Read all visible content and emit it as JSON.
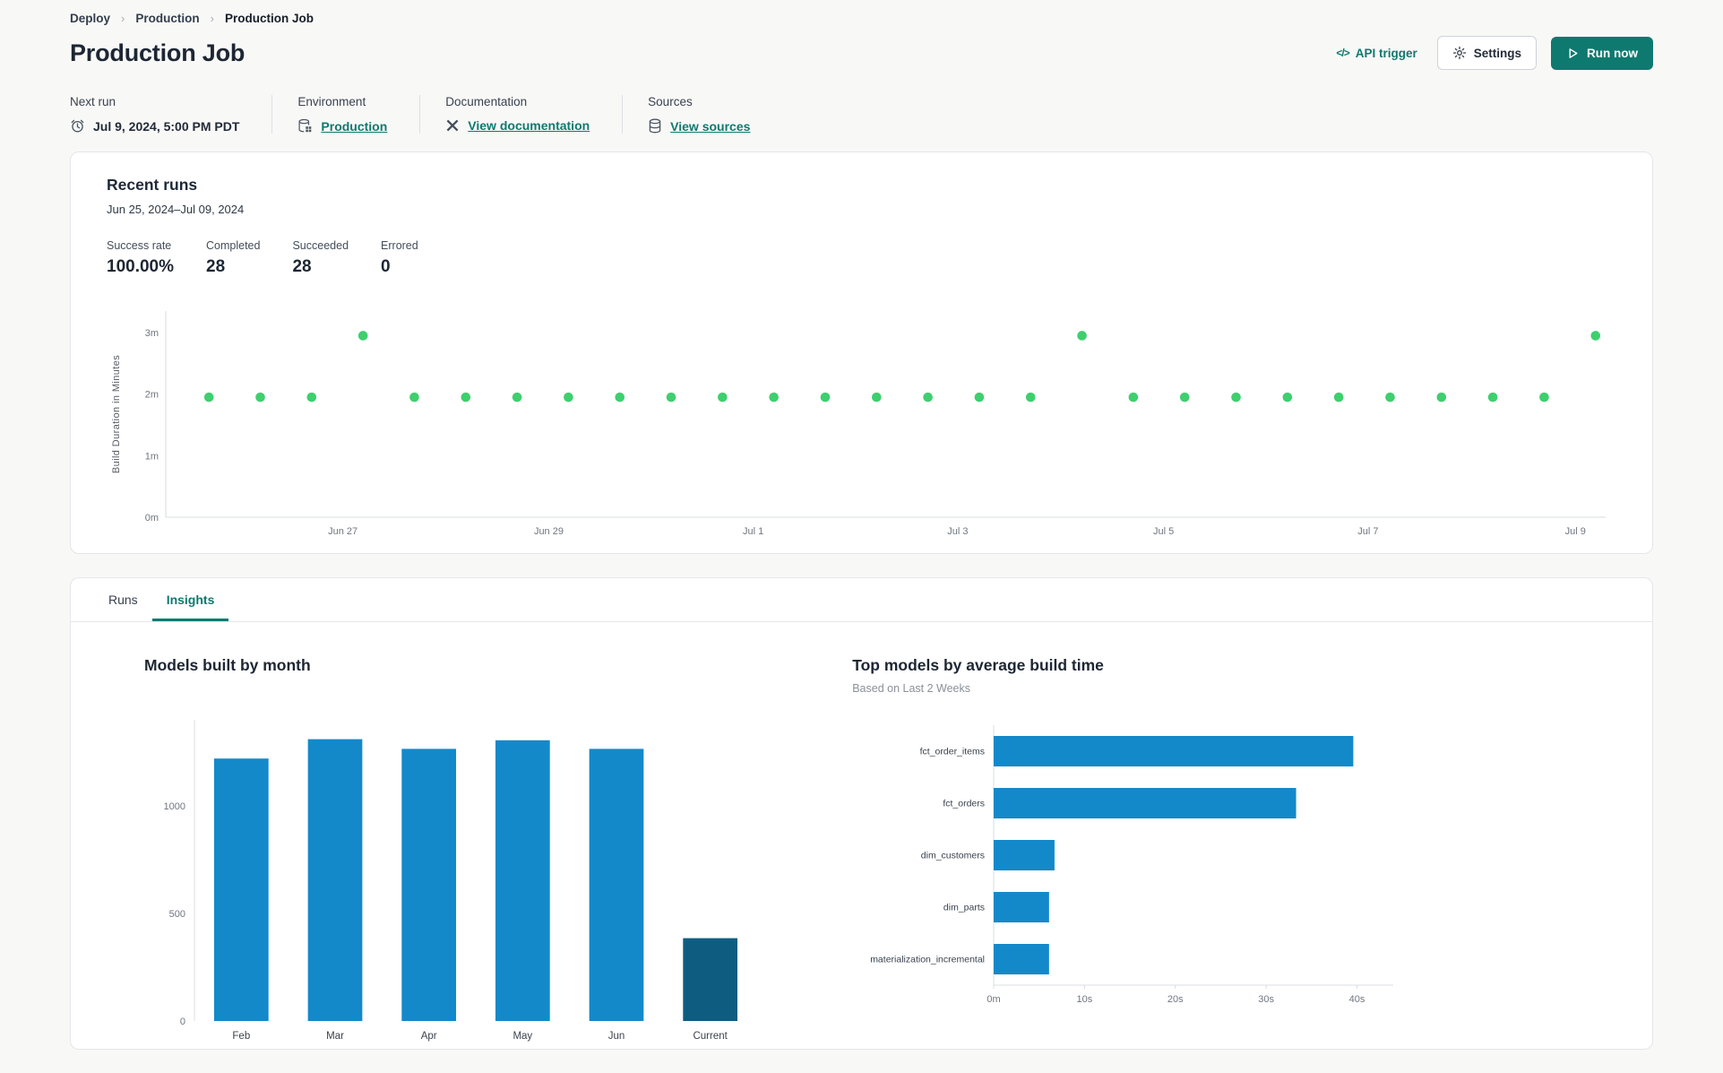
{
  "colors": {
    "teal": "#0e7a6f",
    "text_dark": "#1e2936",
    "text_gray": "#5a6472",
    "border": "#e4e6e9",
    "page_bg": "#f8f8f7",
    "card_bg": "#ffffff",
    "bar_blue": "#1389ca",
    "bar_dark_blue": "#0e5d81",
    "dot_green": "#3ecf6e",
    "axis_line": "#d9dcdf",
    "tick_text": "#6f7680"
  },
  "breadcrumb": {
    "separator": "›",
    "items": [
      {
        "label": "Deploy"
      },
      {
        "label": "Production"
      },
      {
        "label": "Production Job"
      }
    ]
  },
  "header": {
    "title": "Production Job",
    "api_trigger_label": "API trigger",
    "code_glyph": "</>",
    "settings_label": "Settings",
    "run_now_label": "Run now"
  },
  "info": {
    "columns": [
      {
        "label": "Next run",
        "value": "Jul 9, 2024, 5:00 PM PDT",
        "icon": "alarm-clock-icon"
      },
      {
        "label": "Environment",
        "value": "Production",
        "icon": "environment-icon"
      },
      {
        "label": "Documentation",
        "value": "View documentation",
        "icon": "dbt-logo-icon"
      },
      {
        "label": "Sources",
        "value": "View sources",
        "icon": "database-icon"
      }
    ]
  },
  "recent_runs": {
    "title": "Recent runs",
    "date_range": "Jun 25, 2024–Jul 09, 2024",
    "stats": [
      {
        "label": "Success rate",
        "value": "100.00%"
      },
      {
        "label": "Completed",
        "value": "28"
      },
      {
        "label": "Succeeded",
        "value": "28"
      },
      {
        "label": "Errored",
        "value": "0"
      }
    ]
  },
  "tabs": [
    {
      "label": "Runs",
      "active": false
    },
    {
      "label": "Insights",
      "active": true
    }
  ],
  "chart_data": [
    {
      "type": "scatter",
      "title": "Recent runs build duration",
      "ylabel": "Build Duration in Minutes",
      "y_ticks": [
        "0m",
        "1m",
        "2m",
        "3m"
      ],
      "y_tick_values": [
        0,
        1,
        2,
        3
      ],
      "ylim": [
        0,
        3.35
      ],
      "x_tick_labels": [
        "Jun 27",
        "Jun 29",
        "Jul 1",
        "Jul 3",
        "Jul 5",
        "Jul 7",
        "Jul 9"
      ],
      "x_tick_positions_pct": [
        12.3,
        26.6,
        40.8,
        55.0,
        69.3,
        83.5,
        97.9
      ],
      "x_start_pct": 3,
      "x_end_pct": 99.3,
      "values": [
        1.95,
        1.95,
        1.95,
        2.95,
        1.95,
        1.95,
        1.95,
        1.95,
        1.95,
        1.95,
        1.95,
        1.95,
        1.95,
        1.95,
        1.95,
        1.95,
        1.95,
        2.95,
        1.95,
        1.95,
        1.95,
        1.95,
        1.95,
        1.95,
        1.95,
        1.95,
        1.95,
        2.95
      ],
      "point_color": "#3ecf6e",
      "legend": "none",
      "grid": false
    },
    {
      "type": "bar",
      "title": "Models built by month",
      "xlabel": "",
      "ylabel": "",
      "categories": [
        "Feb",
        "Mar",
        "Apr",
        "May",
        "Jun",
        "Current"
      ],
      "values": [
        1220,
        1310,
        1265,
        1305,
        1265,
        385
      ],
      "bar_colors": [
        "#1389ca",
        "#1389ca",
        "#1389ca",
        "#1389ca",
        "#1389ca",
        "#0e5d81"
      ],
      "y_ticks": [
        0,
        500,
        1000
      ],
      "ylim": [
        0,
        1400
      ],
      "legend": "none",
      "grid": false
    },
    {
      "type": "hbar",
      "title": "Top models by average build time",
      "subtitle": "Based on Last 2 Weeks",
      "categories": [
        "fct_order_items",
        "fct_orders",
        "dim_customers",
        "dim_parts",
        "materialization_incremental"
      ],
      "values": [
        39.6,
        33.3,
        6.7,
        6.1,
        6.1
      ],
      "value_unit": "seconds",
      "x_ticks": [
        "0m",
        "10s",
        "20s",
        "30s",
        "40s"
      ],
      "x_tick_values": [
        0,
        10,
        20,
        30,
        40
      ],
      "xlim": [
        0,
        44
      ],
      "bar_color": "#1389ca",
      "legend": "none",
      "grid": false
    }
  ]
}
